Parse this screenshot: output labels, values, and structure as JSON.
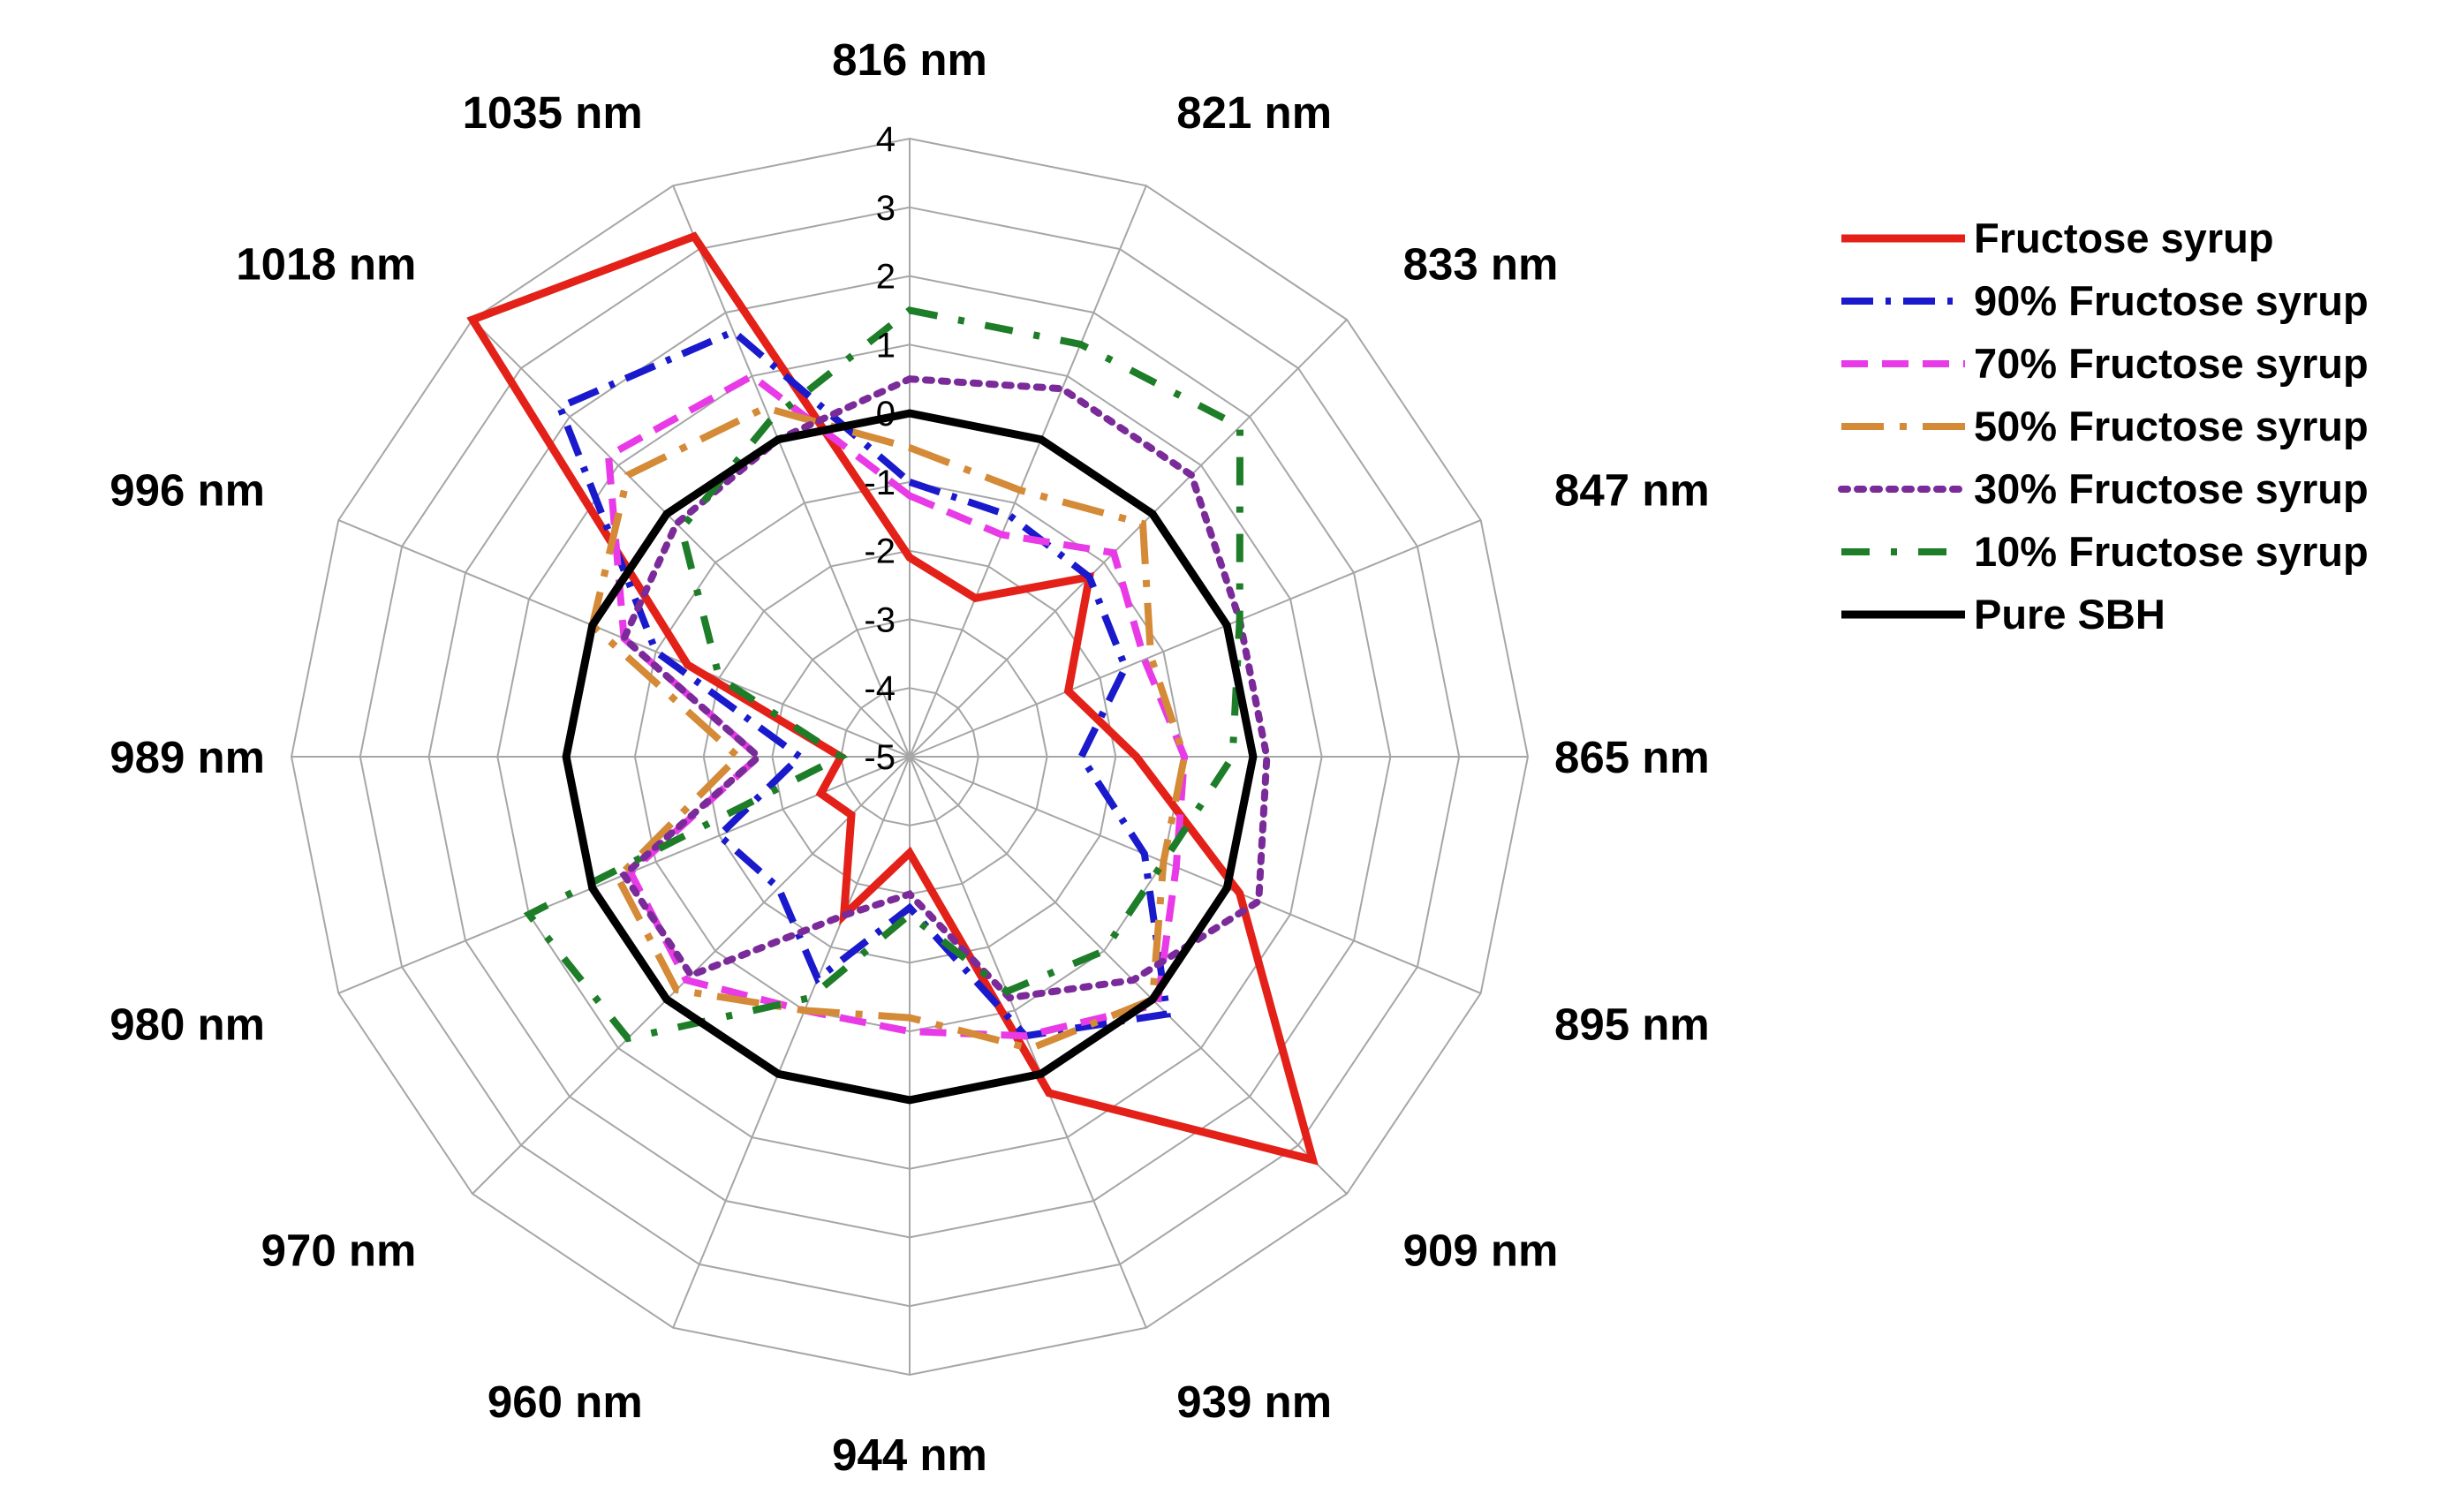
{
  "chart_data": {
    "type": "radar",
    "title": "",
    "categories": [
      "816 nm",
      "821 nm",
      "833 nm",
      "847 nm",
      "865 nm",
      "895 nm",
      "909 nm",
      "939 nm",
      "944 nm",
      "960 nm",
      "970 nm",
      "980 nm",
      "989 nm",
      "996 nm",
      "1018 nm",
      "1035 nm"
    ],
    "rlim": [
      -5,
      4
    ],
    "ticks": [
      -5,
      -4,
      -3,
      -2,
      -1,
      0,
      1,
      2,
      3,
      4
    ],
    "grid": true,
    "legend_position": "right",
    "series": [
      {
        "name": "Fructose syrup",
        "color": "#e32119",
        "dash": "solid",
        "values": [
          -2.1,
          -2.5,
          -1.3,
          -2.5,
          -1.7,
          0.2,
          3.3,
          0.3,
          -3.6,
          -2.5,
          -3.8,
          -3.6,
          -4.0,
          -1.5,
          4.0,
          3.2
        ]
      },
      {
        "name": "90% Fructose syrup",
        "color": "#1a1acc",
        "dash": "dashdot",
        "values": [
          -1.0,
          -1.2,
          -1.3,
          -1.6,
          -2.5,
          -1.3,
          0.3,
          -0.6,
          -2.8,
          -1.5,
          -2.3,
          -2.0,
          -3.4,
          -1.0,
          2.2,
          1.7
        ]
      },
      {
        "name": "70% Fructose syrup",
        "color": "#e83ae6",
        "dash": "dash",
        "values": [
          -1.2,
          -1.5,
          -0.8,
          -1.3,
          -1.0,
          -0.8,
          0.1,
          -0.6,
          -1.0,
          -1.0,
          -0.4,
          -0.6,
          -2.8,
          -0.5,
          1.2,
          1.0
        ]
      },
      {
        "name": "50% Fructose syrup",
        "color": "#d48a36",
        "dash": "longdashdot",
        "values": [
          -0.5,
          -0.8,
          -0.2,
          -1.2,
          -1.0,
          -1.0,
          0.0,
          -0.4,
          -1.2,
          -1.0,
          -0.2,
          -0.4,
          -2.5,
          0.0,
          0.8,
          0.5
        ]
      },
      {
        "name": "30% Fructose syrup",
        "color": "#7a2b99",
        "dash": "dot",
        "values": [
          0.5,
          0.8,
          0.8,
          0.2,
          0.2,
          0.5,
          -0.4,
          -1.2,
          -3.0,
          -2.5,
          -0.5,
          -0.5,
          -2.8,
          -0.5,
          -0.2,
          0.0
        ]
      },
      {
        "name": "10% Fructose syrup",
        "color": "#1e7d28",
        "dash": "dashdotsparse",
        "values": [
          1.5,
          1.5,
          1.8,
          0.2,
          -0.3,
          -1.0,
          -1.0,
          -1.3,
          -2.7,
          -1.2,
          0.8,
          1.0,
          -4.0,
          -2.0,
          -0.3,
          0.3
        ]
      },
      {
        "name": "Pure SBH",
        "color": "#000000",
        "dash": "solid",
        "values": [
          0,
          0,
          0,
          0,
          0,
          0,
          0,
          0,
          0,
          0,
          0,
          0,
          0,
          0,
          0,
          0
        ]
      }
    ]
  }
}
